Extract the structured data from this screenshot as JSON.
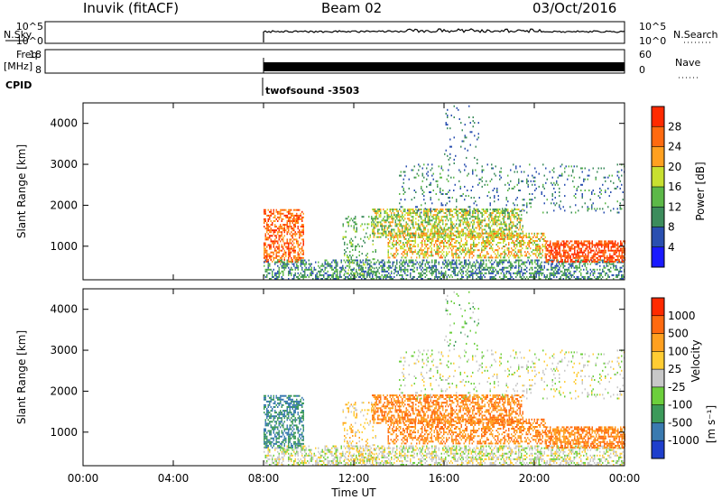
{
  "header": {
    "station": "Inuvik (fitACF)",
    "beam": "Beam 02",
    "date": "03/Oct/2016"
  },
  "top_panels": {
    "nsky_label": "N.Sky",
    "nsearch_label": "N.Search",
    "noise_ticks_left": [
      "10^5",
      "10^0"
    ],
    "noise_ticks_right": [
      "10^5",
      "10^0"
    ],
    "freq_label": "Freq.",
    "freq_unit": "[MHz]",
    "freq_ticks": [
      "18",
      "8"
    ],
    "nave_label": "Nave",
    "nave_ticks": [
      "60",
      "0"
    ],
    "cpid_label": "CPID",
    "cpid_text": "twofsound -3503"
  },
  "chart_data": [
    {
      "type": "heatmap",
      "panel": "power",
      "ylabel": "Slant Range [km]",
      "ylim": [
        180,
        4500
      ],
      "yticks": [
        1000,
        2000,
        3000,
        4000
      ],
      "x": [
        "00:00",
        "04:00",
        "08:00",
        "12:00",
        "16:00",
        "20:00",
        "00:00"
      ],
      "xlim_hours": [
        0,
        24
      ],
      "data_start_hour": 8.0,
      "colorbar": {
        "label": "Power [dB]",
        "ticks": [
          "28",
          "24",
          "20",
          "16",
          "12",
          "8",
          "4"
        ],
        "levels": [
          0,
          4,
          8,
          12,
          16,
          20,
          24,
          28,
          32
        ],
        "colors": [
          "#1a1aff",
          "#2a4fb0",
          "#3c8c5c",
          "#5cb848",
          "#c8e030",
          "#ffa020",
          "#ff6a10",
          "#ff2a00"
        ]
      }
    },
    {
      "type": "heatmap",
      "panel": "velocity",
      "ylabel": "Slant Range [km]",
      "ylim": [
        180,
        4500
      ],
      "yticks": [
        1000,
        2000,
        3000,
        4000
      ],
      "x": [
        "00:00",
        "04:00",
        "08:00",
        "12:00",
        "16:00",
        "20:00",
        "00:00"
      ],
      "xlim_hours": [
        0,
        24
      ],
      "data_start_hour": 8.0,
      "colorbar": {
        "label": "Velocity",
        "unit": "[m s⁻¹]",
        "ticks": [
          "1000",
          "500",
          "100",
          "25",
          "-25",
          "-100",
          "-500",
          "-1000"
        ],
        "colors": [
          "#1f3fcc",
          "#3a7ab0",
          "#3c9a5a",
          "#6ccf3c",
          "#c8c8c8",
          "#ffcc33",
          "#ffa020",
          "#ff6a10",
          "#ff2a00"
        ]
      }
    }
  ],
  "xaxis": {
    "label": "Time UT"
  }
}
